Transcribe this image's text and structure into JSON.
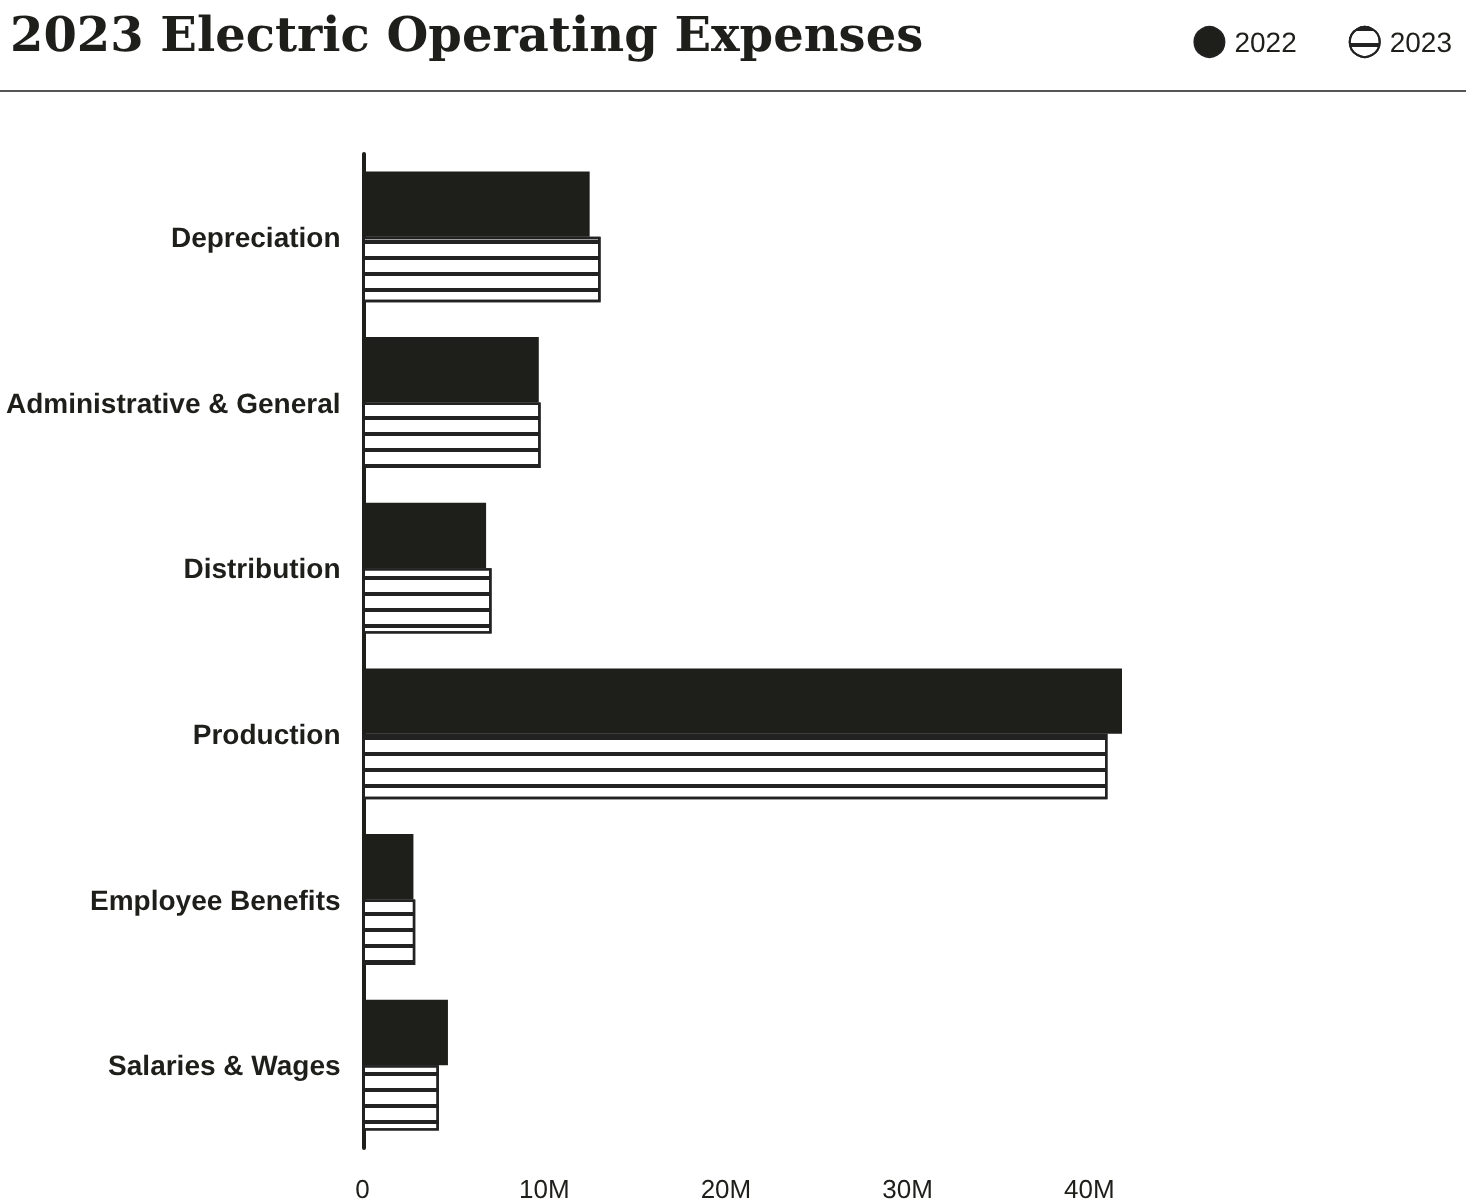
{
  "chart_data": {
    "type": "bar",
    "orientation": "horizontal",
    "title": "2023 Electric Operating Expenses",
    "categories": [
      "Depreciation",
      "Administrative & General",
      "Distribution",
      "Production",
      "Employee Benefits",
      "Salaries & Wages"
    ],
    "series": [
      {
        "name": "2022",
        "color": "#1e1e1b",
        "values": [
          12.5,
          9.7,
          6.8,
          41.8,
          2.8,
          4.7
        ]
      },
      {
        "name": "2023",
        "color": "#ffffff",
        "values": [
          13.1,
          9.8,
          7.1,
          41.0,
          2.9,
          4.2
        ]
      }
    ],
    "xticks": [
      {
        "value": 0,
        "label": "0"
      },
      {
        "value": 10,
        "label": "10M"
      },
      {
        "value": 20,
        "label": "20M"
      },
      {
        "value": 30,
        "label": "30M"
      },
      {
        "value": 40,
        "label": "40M"
      }
    ],
    "xlim": [
      0,
      41.8
    ],
    "grid": false,
    "legend": "top right"
  }
}
